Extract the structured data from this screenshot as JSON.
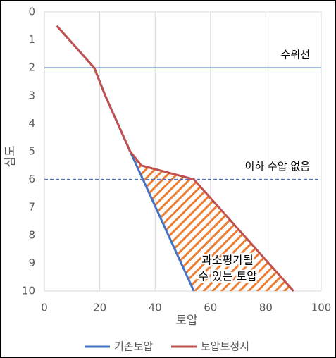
{
  "chart_data": {
    "type": "line",
    "x_label": "토압",
    "y_label": "심도",
    "xlim": [
      0,
      100
    ],
    "xticks": [
      0,
      20,
      40,
      60,
      80,
      100
    ],
    "ylim": [
      0,
      10
    ],
    "yticks": [
      0,
      1,
      2,
      3,
      4,
      5,
      6,
      7,
      8,
      9,
      10
    ],
    "y_reversed": true,
    "xgrid": true,
    "series": [
      {
        "name": "기존토압",
        "color": "#4472c4",
        "x": [
          4.5,
          18,
          22,
          31,
          54
        ],
        "values": [
          0.5,
          2,
          3,
          5,
          10
        ]
      },
      {
        "name": "토압보정시",
        "color": "#c0504d",
        "x": [
          4.5,
          18,
          22,
          31,
          35,
          54,
          90
        ],
        "values": [
          0.5,
          2,
          3,
          5,
          5.5,
          6,
          10
        ]
      }
    ],
    "reference_lines": [
      {
        "value": 2,
        "label": "수위선",
        "color": "#4472c4",
        "style": "solid"
      },
      {
        "value": 6,
        "label": "이하 수압 없음",
        "color": "#4472c4",
        "style": "dashed"
      }
    ],
    "hatch_color": "#ed7d31",
    "annotation": [
      "과소평가될",
      "수 있는 토압"
    ],
    "legend": "bottom"
  }
}
